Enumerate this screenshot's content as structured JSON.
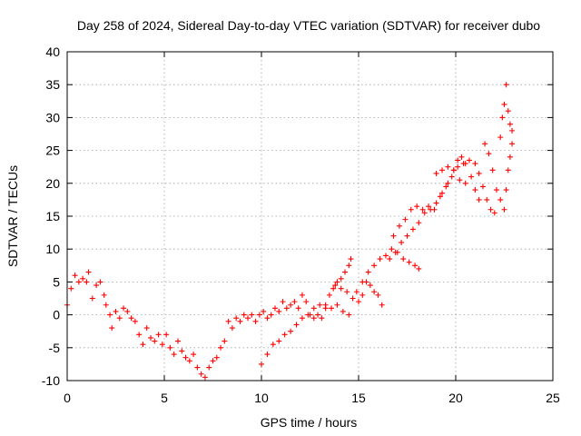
{
  "chart_data": {
    "type": "scatter",
    "title": "Day 258 of 2024, Sidereal Day-to-day VTEC variation (SDTVAR) for receiver dubo",
    "xlabel": "GPS time / hours",
    "ylabel": "SDTVAR / TECUs",
    "xlim": [
      0,
      25
    ],
    "ylim": [
      -10,
      40
    ],
    "xticks": [
      "0",
      "5",
      "10",
      "15",
      "20",
      "25"
    ],
    "yticks": [
      "-10",
      "-5",
      "0",
      "5",
      "10",
      "15",
      "20",
      "25",
      "30",
      "35",
      "40"
    ],
    "grid": true,
    "marker": "plus",
    "series": [
      {
        "name": "SDTVAR",
        "color": "#ff0000",
        "points": [
          [
            0.0,
            1.5
          ],
          [
            0.2,
            4.0
          ],
          [
            0.4,
            6.0
          ],
          [
            0.6,
            5.0
          ],
          [
            0.8,
            5.5
          ],
          [
            1.0,
            5.0
          ],
          [
            1.1,
            6.5
          ],
          [
            1.3,
            2.5
          ],
          [
            1.5,
            4.5
          ],
          [
            1.7,
            5.0
          ],
          [
            1.9,
            3.0
          ],
          [
            2.0,
            1.5
          ],
          [
            2.2,
            0.0
          ],
          [
            2.3,
            -2.0
          ],
          [
            2.5,
            0.5
          ],
          [
            2.7,
            -0.5
          ],
          [
            2.9,
            1.0
          ],
          [
            3.1,
            0.5
          ],
          [
            3.3,
            -0.5
          ],
          [
            3.5,
            -1.0
          ],
          [
            3.7,
            -3.0
          ],
          [
            3.9,
            -4.5
          ],
          [
            4.1,
            -2.0
          ],
          [
            4.3,
            -3.5
          ],
          [
            4.5,
            -4.0
          ],
          [
            4.7,
            -3.0
          ],
          [
            4.9,
            -4.5
          ],
          [
            5.1,
            -3.0
          ],
          [
            5.3,
            -5.0
          ],
          [
            5.5,
            -6.0
          ],
          [
            5.7,
            -4.0
          ],
          [
            5.9,
            -5.5
          ],
          [
            6.1,
            -6.5
          ],
          [
            6.3,
            -7.0
          ],
          [
            6.5,
            -6.0
          ],
          [
            6.7,
            -8.0
          ],
          [
            6.9,
            -9.0
          ],
          [
            7.1,
            -9.5
          ],
          [
            7.3,
            -8.0
          ],
          [
            7.5,
            -7.0
          ],
          [
            7.7,
            -6.5
          ],
          [
            7.9,
            -5.0
          ],
          [
            8.1,
            -4.0
          ],
          [
            8.3,
            -1.0
          ],
          [
            8.5,
            -2.0
          ],
          [
            8.7,
            -0.5
          ],
          [
            8.9,
            -1.0
          ],
          [
            9.1,
            0.0
          ],
          [
            9.3,
            -0.5
          ],
          [
            9.5,
            0.0
          ],
          [
            9.7,
            -1.0
          ],
          [
            9.9,
            0.0
          ],
          [
            10.1,
            0.5
          ],
          [
            10.3,
            -0.5
          ],
          [
            10.5,
            0.0
          ],
          [
            10.7,
            1.0
          ],
          [
            10.9,
            0.5
          ],
          [
            11.1,
            2.0
          ],
          [
            11.3,
            1.0
          ],
          [
            11.5,
            1.5
          ],
          [
            11.7,
            2.0
          ],
          [
            11.9,
            1.0
          ],
          [
            12.1,
            3.0
          ],
          [
            12.3,
            2.0
          ],
          [
            12.5,
            0.0
          ],
          [
            12.7,
            -0.5
          ],
          [
            12.9,
            0.0
          ],
          [
            13.1,
            -0.5
          ],
          [
            13.3,
            1.0
          ],
          [
            13.5,
            3.0
          ],
          [
            13.7,
            4.0
          ],
          [
            13.9,
            5.0
          ],
          [
            14.1,
            5.5
          ],
          [
            14.3,
            6.5
          ],
          [
            14.5,
            7.5
          ],
          [
            14.6,
            8.5
          ],
          [
            10.0,
            -7.5
          ],
          [
            10.3,
            -6.0
          ],
          [
            10.6,
            -4.5
          ],
          [
            10.9,
            -4.0
          ],
          [
            11.2,
            -3.0
          ],
          [
            11.5,
            -2.5
          ],
          [
            11.8,
            -1.5
          ],
          [
            12.1,
            -0.5
          ],
          [
            12.4,
            0.0
          ],
          [
            12.7,
            1.0
          ],
          [
            13.0,
            1.5
          ],
          [
            13.3,
            1.5
          ],
          [
            13.6,
            1.0
          ],
          [
            13.9,
            1.5
          ],
          [
            14.2,
            0.5
          ],
          [
            14.5,
            0.0
          ],
          [
            13.8,
            4.5
          ],
          [
            14.1,
            4.0
          ],
          [
            14.4,
            3.5
          ],
          [
            14.7,
            2.5
          ],
          [
            15.0,
            2.0
          ],
          [
            15.2,
            3.0
          ],
          [
            15.4,
            5.0
          ],
          [
            15.6,
            4.5
          ],
          [
            15.8,
            3.5
          ],
          [
            16.0,
            3.0
          ],
          [
            16.2,
            1.5
          ],
          [
            14.9,
            3.5
          ],
          [
            15.2,
            5.0
          ],
          [
            15.5,
            6.5
          ],
          [
            15.8,
            7.5
          ],
          [
            16.1,
            8.5
          ],
          [
            16.4,
            9.0
          ],
          [
            16.7,
            10.0
          ],
          [
            17.0,
            9.5
          ],
          [
            17.3,
            8.5
          ],
          [
            17.6,
            8.0
          ],
          [
            17.9,
            7.5
          ],
          [
            18.1,
            7.0
          ],
          [
            16.6,
            8.5
          ],
          [
            16.9,
            9.5
          ],
          [
            17.2,
            11.0
          ],
          [
            17.5,
            12.0
          ],
          [
            17.8,
            13.0
          ],
          [
            18.1,
            14.0
          ],
          [
            18.4,
            15.5
          ],
          [
            18.7,
            16.0
          ],
          [
            19.0,
            17.0
          ],
          [
            19.3,
            18.5
          ],
          [
            19.6,
            20.0
          ],
          [
            19.9,
            22.0
          ],
          [
            20.1,
            23.5
          ],
          [
            20.3,
            24.0
          ],
          [
            20.5,
            23.0
          ],
          [
            16.8,
            12.0
          ],
          [
            17.1,
            13.5
          ],
          [
            17.4,
            14.5
          ],
          [
            17.7,
            16.0
          ],
          [
            18.0,
            16.5
          ],
          [
            18.3,
            16.0
          ],
          [
            18.6,
            16.5
          ],
          [
            18.9,
            16.0
          ],
          [
            19.2,
            18.0
          ],
          [
            19.5,
            19.5
          ],
          [
            19.8,
            21.0
          ],
          [
            20.1,
            22.5
          ],
          [
            20.4,
            23.0
          ],
          [
            20.7,
            23.5
          ],
          [
            21.0,
            23.0
          ],
          [
            21.2,
            21.5
          ],
          [
            21.4,
            19.5
          ],
          [
            21.6,
            17.5
          ],
          [
            21.8,
            16.0
          ],
          [
            22.0,
            15.5
          ],
          [
            19.0,
            21.5
          ],
          [
            19.3,
            22.0
          ],
          [
            19.6,
            22.5
          ],
          [
            19.9,
            22.0
          ],
          [
            20.2,
            20.5
          ],
          [
            20.5,
            20.0
          ],
          [
            20.8,
            21.0
          ],
          [
            21.0,
            19.0
          ],
          [
            21.2,
            17.5
          ],
          [
            21.5,
            26.0
          ],
          [
            21.7,
            24.5
          ],
          [
            21.9,
            22.0
          ],
          [
            22.1,
            19.0
          ],
          [
            22.3,
            17.5
          ],
          [
            22.5,
            16.0
          ],
          [
            22.6,
            19.0
          ],
          [
            22.7,
            22.0
          ],
          [
            22.8,
            24.0
          ],
          [
            22.9,
            26.0
          ],
          [
            22.3,
            27.0
          ],
          [
            22.4,
            30.0
          ],
          [
            22.5,
            32.0
          ],
          [
            22.6,
            35.0
          ],
          [
            22.7,
            31.0
          ],
          [
            22.8,
            29.0
          ],
          [
            22.9,
            28.0
          ]
        ]
      }
    ]
  }
}
